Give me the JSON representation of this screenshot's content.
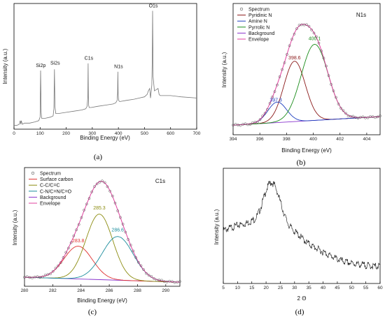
{
  "chart_data": [
    {
      "id": "a",
      "type": "line",
      "panel_label": "(a)",
      "xlabel": "Binding Energy (eV)",
      "ylabel": "Intensity (a.u.)",
      "xlim": [
        0,
        700
      ],
      "ylim": [
        0,
        1
      ],
      "xticks": [
        0,
        100,
        200,
        300,
        400,
        500,
        600,
        700
      ],
      "series": [
        {
          "color": "#777777",
          "x": [
            0,
            10,
            20,
            24,
            26,
            28,
            32,
            40,
            60,
            80,
            95,
            100,
            102,
            104,
            106,
            110,
            120,
            140,
            150,
            153,
            155,
            157,
            160,
            170,
            200,
            230,
            260,
            275,
            280,
            283,
            284,
            285,
            286,
            288,
            295,
            320,
            350,
            380,
            390,
            395,
            397,
            398,
            399,
            401,
            405,
            430,
            460,
            480,
            500,
            510,
            515,
            520,
            523,
            526,
            528,
            530,
            531,
            532,
            533,
            535,
            538,
            545,
            552,
            556,
            560,
            570,
            600,
            640,
            700
          ],
          "y": [
            0.01,
            0.01,
            0.02,
            0.05,
            0.02,
            0.05,
            0.02,
            0.03,
            0.03,
            0.04,
            0.05,
            0.08,
            0.47,
            0.12,
            0.07,
            0.07,
            0.07,
            0.08,
            0.09,
            0.15,
            0.48,
            0.17,
            0.11,
            0.11,
            0.12,
            0.13,
            0.14,
            0.15,
            0.17,
            0.25,
            0.53,
            0.25,
            0.18,
            0.16,
            0.16,
            0.17,
            0.18,
            0.19,
            0.2,
            0.22,
            0.28,
            0.46,
            0.27,
            0.22,
            0.21,
            0.22,
            0.23,
            0.24,
            0.25,
            0.27,
            0.3,
            0.32,
            0.24,
            0.3,
            0.35,
            0.6,
            0.97,
            0.68,
            0.42,
            0.37,
            0.3,
            0.31,
            0.32,
            0.27,
            0.26,
            0.26,
            0.26,
            0.25,
            0.24
          ]
        }
      ],
      "annotations": [
        {
          "text": "Si2p",
          "x": 100,
          "y": 0.5,
          "italic_tail": "p"
        },
        {
          "text": "Si2s",
          "x": 155,
          "y": 0.52,
          "italic_tail": "s"
        },
        {
          "text": "C1s",
          "x": 284,
          "y": 0.56,
          "italic_tail": "s"
        },
        {
          "text": "N1s",
          "x": 398,
          "y": 0.49,
          "italic_tail": "s"
        },
        {
          "text": "O1s",
          "x": 531,
          "y": 1.0,
          "italic_tail": "s"
        }
      ]
    },
    {
      "id": "b",
      "type": "line",
      "panel_label": "(b)",
      "title_inside": "N1s",
      "xlabel": "Binding Energy (eV)",
      "ylabel": "Intensity (a.u.)",
      "xlim": [
        394,
        405
      ],
      "ylim": [
        0,
        1
      ],
      "xticks": [
        394,
        396,
        398,
        400,
        402,
        404
      ],
      "legend": [
        {
          "label": "Spectrum",
          "marker": "circle",
          "color": "#555555"
        },
        {
          "label": "Pyridinic N",
          "color": "#8b1a1a"
        },
        {
          "label": "Amine N",
          "color": "#1f3fbf"
        },
        {
          "label": "Pyrrolic N",
          "color": "#1a8c1a"
        },
        {
          "label": "Background",
          "color": "#8833cc"
        },
        {
          "label": "Envelope",
          "color": "#e0409f"
        }
      ],
      "background_line": {
        "x": [
          394.6,
          404.7
        ],
        "y": [
          0.04,
          0.105
        ]
      },
      "components": [
        {
          "name": "Pyridinic N",
          "color": "#8b1a1a",
          "center": 398.6,
          "height": 0.5,
          "sigma": 0.8
        },
        {
          "name": "Amine N",
          "color": "#1f3fbf",
          "center": 397.3,
          "height": 0.17,
          "sigma": 0.7
        },
        {
          "name": "Pyrrolic N",
          "color": "#1a8c1a",
          "center": 400.1,
          "height": 0.63,
          "sigma": 1.0
        }
      ],
      "peak_labels": [
        {
          "text": "397.3",
          "x": 397.2,
          "y": 0.23,
          "color": "#1f3fbf"
        },
        {
          "text": "398.6",
          "x": 398.6,
          "y": 0.58,
          "color": "#8b1a1a"
        },
        {
          "text": "400.1",
          "x": 400.1,
          "y": 0.74,
          "color": "#1a8c1a"
        }
      ]
    },
    {
      "id": "c",
      "type": "line",
      "panel_label": "(c)",
      "title_inside": "C1s",
      "xlabel": "Binding Energy (eV)",
      "ylabel": "Intensity (a.u.)",
      "xlim": [
        280,
        291
      ],
      "ylim": [
        0,
        1
      ],
      "xticks": [
        280,
        282,
        284,
        286,
        288,
        290
      ],
      "legend": [
        {
          "label": "Spectrum",
          "marker": "circle",
          "color": "#555555"
        },
        {
          "label": "Surface carbon",
          "color": "#e03030"
        },
        {
          "label": "C-C/C=C",
          "color": "#8c8c10"
        },
        {
          "label": "C-N/C=N/C=O",
          "color": "#1a8c9c"
        },
        {
          "label": "Background",
          "color": "#8833cc"
        },
        {
          "label": "Envelope",
          "color": "#e0409f"
        }
      ],
      "background_line": {
        "x": [
          280,
          291
        ],
        "y": [
          0.05,
          0.005
        ]
      },
      "components": [
        {
          "name": "Surface carbon",
          "color": "#e03030",
          "center": 283.8,
          "height": 0.3,
          "sigma": 1.0
        },
        {
          "name": "C-C/C=C",
          "color": "#8c8c10",
          "center": 285.3,
          "height": 0.6,
          "sigma": 0.95
        },
        {
          "name": "C-N/C=N/C=O",
          "color": "#1a8c9c",
          "center": 286.6,
          "height": 0.4,
          "sigma": 1.1
        }
      ],
      "peak_labels": [
        {
          "text": "283.8",
          "x": 283.8,
          "y": 0.37,
          "color": "#e03030"
        },
        {
          "text": "285.3",
          "x": 285.3,
          "y": 0.67,
          "color": "#8c8c10"
        },
        {
          "text": "286.6",
          "x": 286.6,
          "y": 0.47,
          "color": "#1a8c9c"
        }
      ]
    },
    {
      "id": "d",
      "type": "line",
      "panel_label": "(d)",
      "xlabel": "2 Θ",
      "ylabel": "Intensity (a.u.)",
      "xlim": [
        5,
        60
      ],
      "ylim": [
        0,
        1
      ],
      "xticks": [
        5,
        10,
        15,
        20,
        25,
        30,
        35,
        40,
        45,
        50,
        55,
        60
      ],
      "yticks_shown": false,
      "series": [
        {
          "color": "#111111",
          "x": [
            5,
            8,
            10,
            12,
            14,
            16,
            17,
            18,
            19,
            20,
            21,
            22,
            23,
            24,
            25,
            26,
            27,
            28,
            30,
            32,
            34,
            36,
            38,
            40,
            42,
            45,
            48,
            50,
            52,
            55,
            58,
            60
          ],
          "y": [
            0.45,
            0.48,
            0.5,
            0.51,
            0.53,
            0.56,
            0.6,
            0.66,
            0.75,
            0.84,
            0.9,
            0.92,
            0.89,
            0.82,
            0.73,
            0.64,
            0.56,
            0.5,
            0.44,
            0.39,
            0.34,
            0.3,
            0.27,
            0.24,
            0.21,
            0.17,
            0.14,
            0.13,
            0.12,
            0.11,
            0.1,
            0.1
          ]
        }
      ]
    }
  ]
}
